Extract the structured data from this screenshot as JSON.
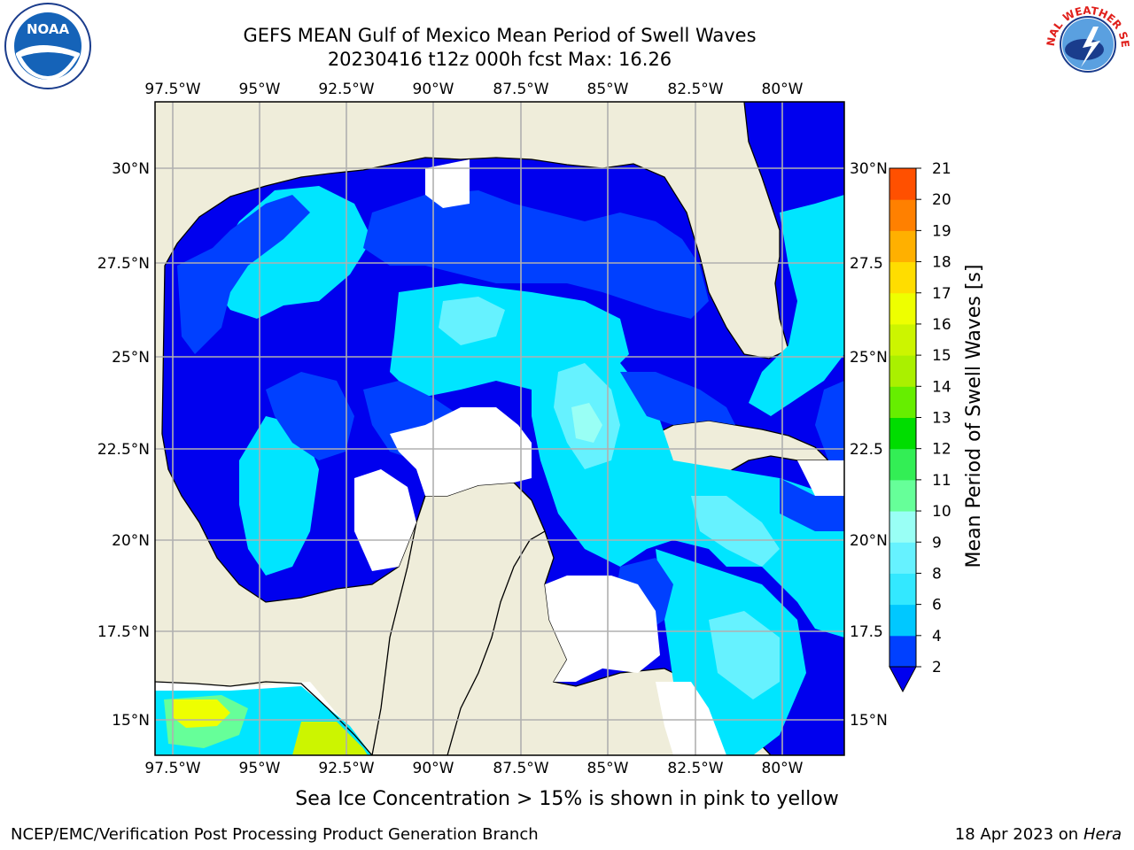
{
  "header": {
    "title_line1": "GEFS MEAN Gulf of Mexico Mean Period of Swell Waves",
    "title_line2": "20230416 t12z 000h fcst   Max: 16.26"
  },
  "logos": {
    "noaa_text": "NOAA",
    "nws_text": "NATIONAL WEATHER SERVICE"
  },
  "map": {
    "lon_labels": [
      "97.5°W",
      "95°W",
      "92.5°W",
      "90°W",
      "87.5°W",
      "85°W",
      "82.5°W",
      "80°W"
    ],
    "lat_labels_left": [
      "30°N",
      "27.5°N",
      "25°N",
      "22.5°N",
      "20°N",
      "17.5°N",
      "15°N"
    ],
    "lat_labels_right": [
      "30°N",
      "27.5",
      "25°N",
      "22.5",
      "20°N",
      "17.5",
      "15°N"
    ],
    "colors": {
      "land": "#efedda",
      "water_blank": "#ffffff",
      "grid": "#b0b0b0"
    }
  },
  "colorbar": {
    "label": "Mean Period of Swell Waves [s]",
    "ticks": [
      "2",
      "4",
      "6",
      "8",
      "9",
      "10",
      "11",
      "12",
      "13",
      "14",
      "15",
      "16",
      "17",
      "18",
      "19",
      "20",
      "21"
    ],
    "colors": [
      "#0040ff",
      "#00c8ff",
      "#33e8ff",
      "#66f2ff",
      "#99fff5",
      "#66ff99",
      "#33ee55",
      "#00dd00",
      "#66ee00",
      "#aaf000",
      "#ccf500",
      "#eeff00",
      "#ffdd00",
      "#ffb000",
      "#ff8000",
      "#ff5000",
      "#ff2000",
      "#ff0000"
    ],
    "extend_color": "#0000ee"
  },
  "note": "Sea Ice Concentration > 15% is shown in pink to yellow",
  "footer": {
    "left": "NCEP/EMC/Verification Post Processing Product Generation Branch",
    "right_prefix": "18 Apr 2023 on ",
    "right_host": "Hera"
  }
}
